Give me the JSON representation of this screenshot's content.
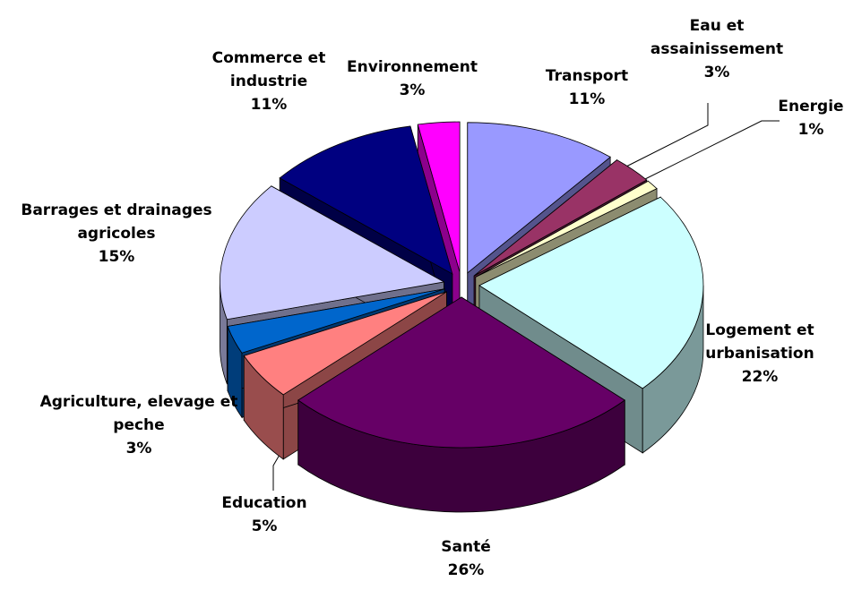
{
  "chart_data": {
    "type": "pie",
    "categories": [
      "Transport",
      "Eau et assainissement",
      "Energie",
      "Logement et urbanisation",
      "Santé",
      "Education",
      "Agriculture, elevage et peche",
      "Barrages et drainages agricoles",
      "Commerce et industrie",
      "Environnement"
    ],
    "values": [
      11,
      3,
      1,
      22,
      26,
      5,
      3,
      15,
      11,
      3
    ],
    "value_labels": [
      "11%",
      "3%",
      "1%",
      "22%",
      "26%",
      "5%",
      "3%",
      "15%",
      "11%",
      "3%"
    ],
    "colors": [
      "#9999ff",
      "#993366",
      "#ffffcc",
      "#ccffff",
      "#660066",
      "#ff8080",
      "#0066cc",
      "#ccccff",
      "#000080",
      "#ff00ff"
    ]
  }
}
